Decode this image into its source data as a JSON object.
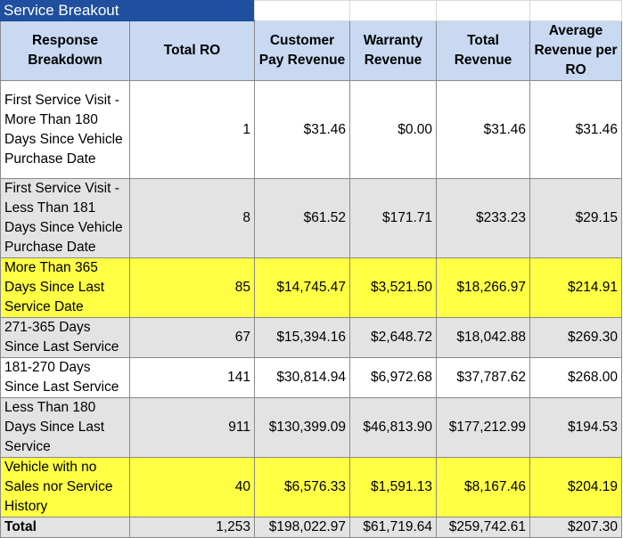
{
  "title": "Service Breakout",
  "columns": {
    "response_breakdown": "Response Breakdown",
    "total_ro": "Total RO",
    "customer_pay_revenue": "Customer Pay Revenue",
    "warranty_revenue": "Warranty Revenue",
    "total_revenue": "Total Revenue",
    "avg_revenue_per_ro": "Average Revenue per RO"
  },
  "rows": [
    {
      "label": "First Service Visit - More Than 180 Days Since Vehicle Purchase Date",
      "total_ro": "1",
      "customer_pay": "$31.46",
      "warranty": "$0.00",
      "total_revenue": "$31.46",
      "avg": "$31.46",
      "highlight": "white"
    },
    {
      "label": "First Service Visit - Less Than 181 Days Since Vehicle Purchase Date",
      "total_ro": "8",
      "customer_pay": "$61.52",
      "warranty": "$171.71",
      "total_revenue": "$233.23",
      "avg": "$29.15",
      "highlight": "grey"
    },
    {
      "label": "More Than 365 Days Since Last Service Date",
      "total_ro": "85",
      "customer_pay": "$14,745.47",
      "warranty": "$3,521.50",
      "total_revenue": "$18,266.97",
      "avg": "$214.91",
      "highlight": "yellow"
    },
    {
      "label": "271-365 Days Since Last Service",
      "total_ro": "67",
      "customer_pay": "$15,394.16",
      "warranty": "$2,648.72",
      "total_revenue": "$18,042.88",
      "avg": "$269.30",
      "highlight": "grey"
    },
    {
      "label": "181-270 Days Since Last Service",
      "total_ro": "141",
      "customer_pay": "$30,814.94",
      "warranty": "$6,972.68",
      "total_revenue": "$37,787.62",
      "avg": "$268.00",
      "highlight": "white"
    },
    {
      "label": "Less Than 180 Days Since Last Service",
      "total_ro": "911",
      "customer_pay": "$130,399.09",
      "warranty": "$46,813.90",
      "total_revenue": "$177,212.99",
      "avg": "$194.53",
      "highlight": "grey"
    },
    {
      "label": "Vehicle with no Sales nor Service History",
      "total_ro": "40",
      "customer_pay": "$6,576.33",
      "warranty": "$1,591.13",
      "total_revenue": "$8,167.46",
      "avg": "$204.19",
      "highlight": "yellow"
    }
  ],
  "total": {
    "label": "Total",
    "total_ro": "1,253",
    "customer_pay": "$198,022.97",
    "warranty": "$61,719.64",
    "total_revenue": "$259,742.61",
    "avg": "$207.30"
  },
  "colors": {
    "title_bg": "#1f4f9e",
    "header_bg": "#c9d9f2",
    "highlight_yellow": "#ffff44",
    "row_grey": "#e3e3e3"
  }
}
